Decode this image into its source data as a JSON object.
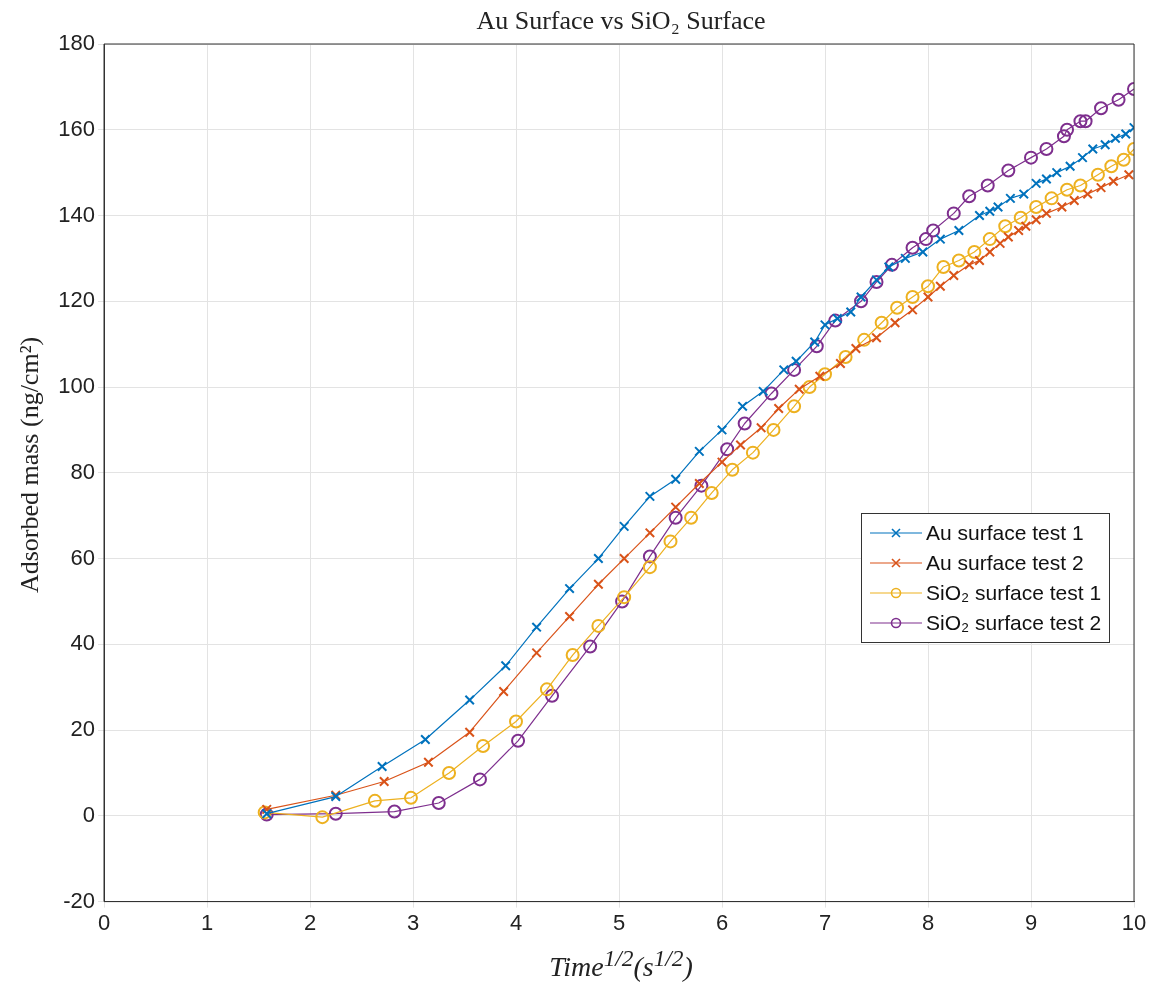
{
  "chart_data": {
    "type": "line",
    "title": "Au Surface vs SiO₂ Surface",
    "xlabel": "Time$^{1/2}$(s$^{1/2}$)",
    "ylabel": "Adsorbed mass (ng/cm²)",
    "xlim": [
      0,
      10
    ],
    "xticks": [
      0,
      1,
      2,
      3,
      4,
      5,
      6,
      7,
      8,
      9,
      10
    ],
    "ylim": [
      -20,
      180
    ],
    "yticks": [
      -20,
      0,
      20,
      40,
      60,
      80,
      100,
      120,
      140,
      160,
      180
    ],
    "grid": true,
    "legend": "right",
    "line_style": "solid",
    "series": [
      {
        "name": "Au surface test 1",
        "color": "#0072bd",
        "marker": "cross",
        "x": [
          1.58,
          2.25,
          2.7,
          3.12,
          3.55,
          3.9,
          4.2,
          4.52,
          4.8,
          5.05,
          5.3,
          5.55,
          5.78,
          6.0,
          6.2,
          6.4,
          6.6,
          6.72,
          6.9,
          7.0,
          7.12,
          7.25,
          7.35,
          7.5,
          7.62,
          7.78,
          7.95,
          8.12,
          8.3,
          8.5,
          8.6,
          8.68,
          8.8,
          8.93,
          9.05,
          9.15,
          9.25,
          9.38,
          9.5,
          9.6,
          9.72,
          9.82,
          9.92,
          10.0
        ],
        "values": [
          0.5,
          4.5,
          11.5,
          17.8,
          27,
          35,
          44,
          53,
          60,
          67.5,
          74.5,
          78.5,
          85,
          90,
          95.5,
          99,
          104,
          106,
          110.5,
          114.5,
          116,
          117.5,
          121,
          125,
          128,
          130,
          131.5,
          134.5,
          136.5,
          140,
          141,
          142,
          144,
          145,
          147.5,
          148.5,
          150,
          151.5,
          153.5,
          155.5,
          156.5,
          158,
          159,
          160.5
        ]
      },
      {
        "name": "Au surface test 2",
        "color": "#d95319",
        "marker": "cross",
        "x": [
          1.58,
          2.25,
          2.72,
          3.15,
          3.55,
          3.88,
          4.2,
          4.52,
          4.8,
          5.05,
          5.3,
          5.55,
          5.78,
          6.0,
          6.18,
          6.38,
          6.55,
          6.75,
          6.95,
          7.15,
          7.3,
          7.5,
          7.68,
          7.85,
          8.0,
          8.12,
          8.25,
          8.4,
          8.5,
          8.6,
          8.7,
          8.78,
          8.88,
          8.95,
          9.05,
          9.15,
          9.3,
          9.42,
          9.55,
          9.68,
          9.8,
          9.95
        ],
        "values": [
          1.5,
          4.8,
          8,
          12.5,
          19.5,
          29,
          38,
          46.5,
          54,
          60,
          66,
          72,
          77.5,
          82.5,
          86.5,
          90.5,
          95,
          99.5,
          102.5,
          105.5,
          109,
          111.5,
          115,
          118,
          121,
          123.5,
          126,
          128.5,
          129.5,
          131.5,
          133.5,
          135,
          136.5,
          137.5,
          139,
          140.5,
          142,
          143.5,
          145,
          146.5,
          148,
          149.5
        ]
      },
      {
        "name": "SiO₂ surface test 1",
        "color": "#edb120",
        "marker": "circle",
        "x": [
          1.56,
          2.12,
          2.63,
          2.98,
          3.35,
          3.68,
          4.0,
          4.3,
          4.55,
          4.8,
          5.05,
          5.3,
          5.5,
          5.7,
          5.9,
          6.1,
          6.3,
          6.5,
          6.7,
          6.85,
          7.0,
          7.2,
          7.38,
          7.55,
          7.7,
          7.85,
          8.0,
          8.15,
          8.3,
          8.45,
          8.6,
          8.75,
          8.9,
          9.05,
          9.2,
          9.35,
          9.48,
          9.65,
          9.78,
          9.9,
          10.0
        ],
        "values": [
          0.8,
          -0.3,
          3.5,
          4.2,
          10,
          16.3,
          22,
          29.5,
          37.5,
          44.3,
          51,
          58,
          64,
          69.5,
          75.3,
          80.7,
          84.7,
          90,
          95.5,
          100,
          103,
          107,
          111,
          115,
          118.5,
          121,
          123.5,
          128,
          129.5,
          131.5,
          134.5,
          137.5,
          139.5,
          142,
          144,
          146,
          147,
          149.5,
          151.5,
          153,
          155.5
        ]
      },
      {
        "name": "SiO₂ surface test 2",
        "color": "#7e2f8e",
        "marker": "circle",
        "x": [
          1.58,
          2.25,
          2.82,
          3.25,
          3.65,
          4.02,
          4.35,
          4.72,
          5.03,
          5.3,
          5.55,
          5.8,
          6.05,
          6.22,
          6.48,
          6.7,
          6.92,
          7.1,
          7.35,
          7.5,
          7.65,
          7.85,
          7.98,
          8.05,
          8.25,
          8.4,
          8.58,
          8.78,
          9.0,
          9.15,
          9.32,
          9.35,
          9.48,
          9.53,
          9.68,
          9.85,
          10.0
        ],
        "values": [
          0.3,
          0.5,
          1,
          3,
          8.5,
          17.5,
          28,
          39.5,
          50,
          60.5,
          69.5,
          77,
          85.5,
          91.5,
          98.5,
          104,
          109.5,
          115.5,
          120,
          124.5,
          128.5,
          132.5,
          134.5,
          136.5,
          140.5,
          144.5,
          147,
          150.5,
          153.5,
          155.5,
          158.5,
          160,
          162,
          162,
          165,
          167,
          169.5
        ]
      }
    ]
  }
}
